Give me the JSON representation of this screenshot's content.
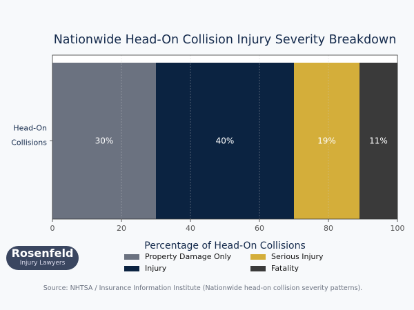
{
  "chart_data": {
    "type": "bar",
    "orientation": "horizontal",
    "stacked": true,
    "title": "Nationwide Head-On Collision Injury Severity Breakdown",
    "xlabel": "Percentage of Head-On Collisions",
    "ylabel": "",
    "categories": [
      "Head-On\nCollisions"
    ],
    "xlim": [
      0,
      100
    ],
    "xticks": [
      0,
      20,
      40,
      60,
      80,
      100
    ],
    "grid": true,
    "legend_position": "bottom",
    "series": [
      {
        "name": "Property Damage Only",
        "values": [
          30
        ],
        "label": "30%",
        "color": "#6b7280"
      },
      {
        "name": "Injury",
        "values": [
          40
        ],
        "label": "40%",
        "color": "#0b2341"
      },
      {
        "name": "Serious Injury",
        "values": [
          19
        ],
        "label": "19%",
        "color": "#d4ae3a"
      },
      {
        "name": "Fatality",
        "values": [
          11
        ],
        "label": "11%",
        "color": "#3a3a3a"
      }
    ]
  },
  "logo": {
    "line1": "Rosenfeld",
    "line2": "Injury Lawyers"
  },
  "source": "Source: NHTSA / Insurance Information Institute (Nationwide head-on collision severity patterns)."
}
